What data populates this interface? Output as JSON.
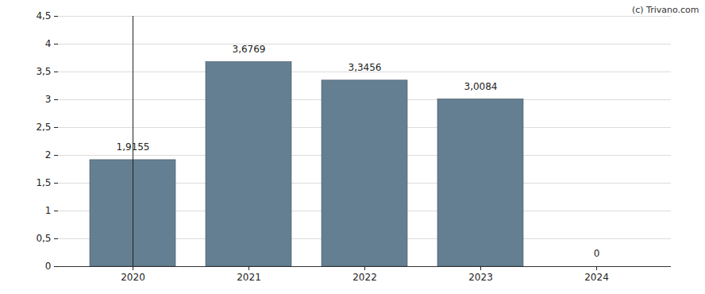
{
  "chart_data": {
    "type": "bar",
    "caption": "(c) Trivano.com",
    "categories": [
      "2020",
      "2021",
      "2022",
      "2023",
      "2024"
    ],
    "values": [
      1.9155,
      3.6769,
      3.3456,
      3.0084,
      0
    ],
    "value_labels": [
      "1,9155",
      "3,6769",
      "3,3456",
      "3,0084",
      "0"
    ],
    "data_labels": true,
    "color": "#647f91",
    "ylim": [
      0,
      4.5
    ],
    "yticks": [
      0,
      {
        "value": 0.5,
        "label": "0,5"
      },
      1,
      {
        "value": 1.5,
        "label": "1,5"
      },
      2,
      {
        "value": 2.5,
        "label": "2,5"
      },
      3,
      {
        "value": 3.5,
        "label": "3,5"
      },
      4,
      {
        "value": 4.5,
        "label": "4,5"
      }
    ],
    "grid": true
  }
}
